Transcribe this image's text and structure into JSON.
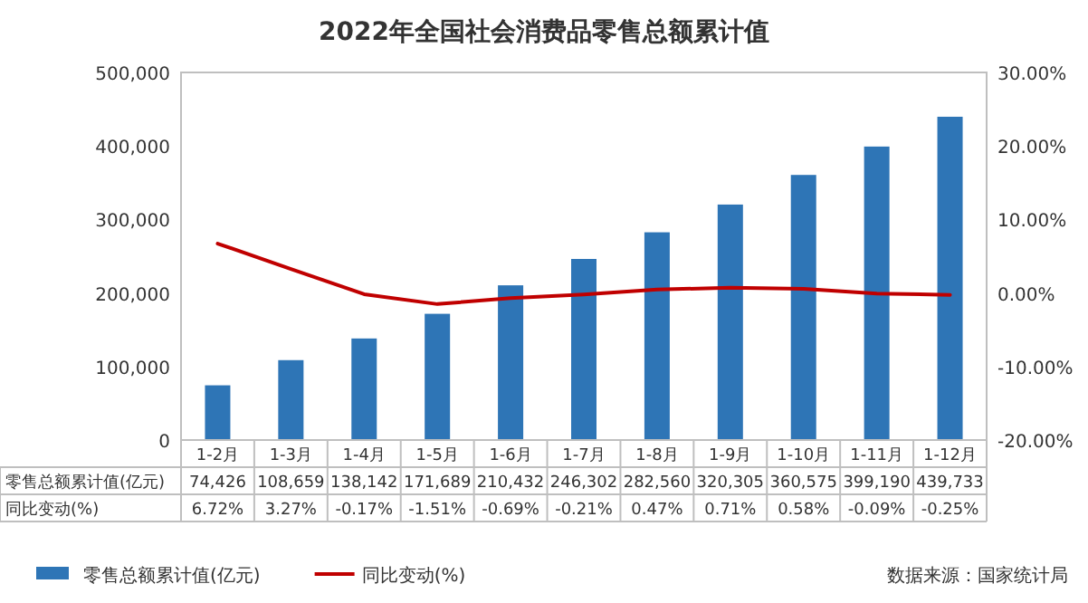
{
  "chart_data": {
    "type": "bar",
    "title": "2022年全国社会消费品零售总额累计值",
    "categories": [
      "1-2月",
      "1-3月",
      "1-4月",
      "1-5月",
      "1-6月",
      "1-7月",
      "1-8月",
      "1-9月",
      "1-10月",
      "1-11月",
      "1-12月"
    ],
    "series": [
      {
        "name": "零售总额累计值(亿元)",
        "color": "#2e75b6",
        "values": [
          74426,
          108659,
          138142,
          171689,
          210432,
          246302,
          282560,
          320305,
          360575,
          399190,
          439733
        ],
        "value_labels": [
          "74,426",
          "108,659",
          "138,142",
          "171,689",
          "210,432",
          "246,302",
          "282,560",
          "320,305",
          "360,575",
          "399,190",
          "439,733"
        ]
      },
      {
        "name": "同比变动(%)",
        "type": "line",
        "axis": "y2",
        "color": "#c00000",
        "values": [
          6.72,
          3.27,
          -0.17,
          -1.51,
          -0.69,
          -0.21,
          0.47,
          0.71,
          0.58,
          -0.09,
          -0.25
        ],
        "value_labels": [
          "6.72%",
          "3.27%",
          "-0.17%",
          "-1.51%",
          "-0.69%",
          "-0.21%",
          "0.47%",
          "0.71%",
          "0.58%",
          "-0.09%",
          "-0.25%"
        ]
      }
    ],
    "ylim": [
      0,
      500000
    ],
    "yticks": [
      0,
      {
        "value": 100000,
        "label": "100,000"
      },
      {
        "value": 200000,
        "label": "200,000"
      },
      {
        "value": 300000,
        "label": "300,000"
      },
      {
        "value": 400000,
        "label": "400,000"
      },
      {
        "value": 500000,
        "label": "500,000"
      }
    ],
    "y2lim": [
      -20,
      30
    ],
    "y2ticks": [
      {
        "value": -20,
        "label": "-20.00%"
      },
      {
        "value": -10,
        "label": "-10.00%"
      },
      {
        "value": 0,
        "label": "0.00%"
      },
      {
        "value": 10,
        "label": "10.00%"
      },
      {
        "value": 20,
        "label": "20.00%"
      },
      {
        "value": 30,
        "label": "30.00%"
      }
    ],
    "legend": "bottom",
    "annotations": [
      "数据来源：国家统计局"
    ]
  }
}
